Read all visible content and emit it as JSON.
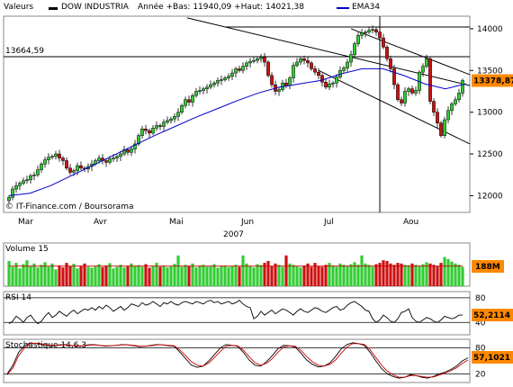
{
  "header": {
    "label": "Valeurs",
    "series_name": "DOW INDUSTRIA",
    "stats": "Année +Bas: 11940,09 +Haut: 14021,38",
    "ema_label": "EMA34"
  },
  "colors": {
    "up": "#33cc33",
    "down": "#cc1111",
    "ema": "#0000cc",
    "badge": "#ff8800",
    "panel_bg": "#ffffff",
    "stoch_line2": "#cc0000"
  },
  "chart_data": [
    {
      "type": "candlestick",
      "title": "DOW INDUSTRIA",
      "xlabel": "2007",
      "months": [
        "Mar",
        "Avr",
        "Mai",
        "Jun",
        "Jul",
        "Aou"
      ],
      "ylim": [
        11800,
        14150
      ],
      "yticks": [
        "14000",
        "13500",
        "13000",
        "12500",
        "12000"
      ],
      "reference_level": {
        "value": 13664.59,
        "label": "13664,59"
      },
      "last_value": {
        "value": 13378.87,
        "label": "13378,87"
      },
      "vertical_marker_month": "Jul",
      "credit": "© IT-Finance.com / Boursorama",
      "closes": [
        11980,
        12080,
        12120,
        12150,
        12180,
        12190,
        12240,
        12250,
        12310,
        12380,
        12430,
        12460,
        12470,
        12500,
        12450,
        12420,
        12330,
        12280,
        12300,
        12360,
        12330,
        12320,
        12350,
        12380,
        12420,
        12450,
        12420,
        12400,
        12440,
        12450,
        12470,
        12500,
        12550,
        12520,
        12560,
        12620,
        12720,
        12800,
        12780,
        12750,
        12810,
        12840,
        12830,
        12880,
        12900,
        12920,
        12950,
        13000,
        13080,
        13150,
        13120,
        13200,
        13250,
        13260,
        13280,
        13300,
        13330,
        13350,
        13380,
        13390,
        13410,
        13430,
        13470,
        13520,
        13500,
        13550,
        13590,
        13610,
        13620,
        13640,
        13660,
        13600,
        13440,
        13330,
        13250,
        13270,
        13350,
        13320,
        13410,
        13560,
        13600,
        13640,
        13620,
        13590,
        13520,
        13480,
        13440,
        13360,
        13300,
        13340,
        13350,
        13420,
        13500,
        13530,
        13600,
        13690,
        13820,
        13920,
        13950,
        13960,
        13980,
        13990,
        13960,
        13890,
        13780,
        13640,
        13520,
        13330,
        13150,
        13110,
        13250,
        13280,
        13230,
        13260,
        13480,
        13550,
        13640,
        13130,
        13000,
        12870,
        12720,
        12910,
        13020,
        13100,
        13150,
        13230,
        13379
      ],
      "ema34": [
        12000,
        12030,
        12120,
        12240,
        12360,
        12480,
        12600,
        12720,
        12830,
        12940,
        13040,
        13140,
        13230,
        13300,
        13340,
        13380,
        13460,
        13520,
        13520,
        13440,
        13340,
        13280,
        13340
      ],
      "volume": {
        "label": "Volume 15",
        "last_label": "188M",
        "values": [
          0.78,
          0.6,
          0.72,
          0.55,
          0.68,
          0.8,
          0.62,
          0.7,
          0.58,
          0.66,
          0.74,
          0.6,
          0.7,
          0.52,
          0.64,
          0.58,
          0.72,
          0.61,
          0.69,
          0.55,
          0.63,
          0.7,
          0.6,
          0.57,
          0.62,
          0.68,
          0.59,
          0.64,
          0.71,
          0.55,
          0.6,
          0.66,
          0.58,
          0.63,
          0.7,
          0.62,
          0.65,
          0.6,
          0.68,
          0.57,
          0.62,
          0.72,
          0.6,
          0.64,
          0.58,
          0.61,
          0.69,
          0.95,
          0.6,
          0.66,
          0.62,
          0.7,
          0.58,
          0.64,
          0.66,
          0.6,
          0.62,
          0.68,
          0.57,
          0.63,
          0.64,
          0.59,
          0.62,
          0.66,
          0.6,
          0.95,
          0.7,
          0.62,
          0.58,
          0.68,
          0.65,
          0.72,
          0.78,
          0.62,
          0.7,
          0.66,
          0.6,
          0.95,
          0.7,
          0.66,
          0.62,
          0.58,
          0.64,
          0.7,
          0.6,
          0.72,
          0.62,
          0.6,
          0.66,
          0.72,
          0.64,
          0.6,
          0.7,
          0.66,
          0.62,
          0.68,
          0.74,
          0.66,
          0.95,
          0.7,
          0.66,
          0.6,
          0.68,
          0.72,
          0.8,
          0.78,
          0.7,
          0.66,
          0.72,
          0.7,
          0.66,
          0.64,
          0.7,
          0.66,
          0.62,
          0.68,
          0.74,
          0.7,
          0.66,
          0.62,
          0.72,
          0.9,
          0.84,
          0.76,
          0.7,
          0.66,
          0.6
        ]
      },
      "rsi": {
        "label": "RSI 14",
        "last_label": "52,2114",
        "levels": [
          "80",
          "40"
        ],
        "ylim": [
          20,
          90
        ],
        "values": [
          38,
          42,
          50,
          46,
          40,
          48,
          52,
          44,
          38,
          42,
          50,
          56,
          48,
          52,
          58,
          54,
          50,
          56,
          60,
          54,
          58,
          62,
          60,
          64,
          60,
          66,
          62,
          68,
          64,
          58,
          62,
          66,
          60,
          64,
          70,
          68,
          66,
          72,
          68,
          70,
          74,
          70,
          66,
          72,
          70,
          74,
          70,
          68,
          72,
          74,
          72,
          70,
          74,
          72,
          70,
          74,
          76,
          72,
          74,
          70,
          72,
          74,
          70,
          72,
          76,
          70,
          66,
          64,
          46,
          50,
          58,
          52,
          56,
          60,
          54,
          58,
          62,
          60,
          56,
          52,
          58,
          62,
          58,
          56,
          60,
          64,
          62,
          58,
          56,
          60,
          64,
          66,
          60,
          62,
          68,
          72,
          74,
          70,
          66,
          60,
          58,
          46,
          40,
          44,
          52,
          48,
          42,
          40,
          46,
          56,
          58,
          62,
          48,
          42,
          40,
          44,
          48,
          46,
          42,
          40,
          44,
          50,
          48,
          46,
          48,
          52,
          52
        ]
      },
      "stochastic": {
        "label": "Stochastique 14,6,3",
        "last_label": "57,1021",
        "levels": [
          "80",
          "20"
        ],
        "ylim": [
          0,
          100
        ],
        "k": [
          20,
          40,
          70,
          85,
          92,
          90,
          88,
          86,
          85,
          87,
          88,
          86,
          84,
          85,
          87,
          88,
          86,
          84,
          85,
          86,
          88,
          87,
          85,
          83,
          84,
          86,
          88,
          87,
          85,
          84,
          70,
          55,
          40,
          35,
          38,
          50,
          65,
          80,
          88,
          86,
          84,
          70,
          52,
          40,
          38,
          48,
          62,
          78,
          86,
          85,
          82,
          68,
          52,
          42,
          36,
          38,
          45,
          60,
          78,
          88,
          92,
          90,
          86,
          70,
          50,
          32,
          20,
          14,
          10,
          12,
          18,
          16,
          12,
          10,
          14,
          20,
          24,
          30,
          38,
          50,
          57
        ],
        "d": [
          18,
          34,
          62,
          80,
          90,
          91,
          89,
          87,
          86,
          86,
          87,
          86,
          85,
          85,
          86,
          87,
          86,
          85,
          85,
          86,
          87,
          87,
          86,
          84,
          84,
          85,
          87,
          87,
          86,
          85,
          75,
          62,
          48,
          40,
          38,
          45,
          58,
          72,
          84,
          86,
          85,
          75,
          60,
          46,
          40,
          44,
          55,
          70,
          82,
          85,
          84,
          74,
          60,
          48,
          40,
          38,
          42,
          52,
          68,
          82,
          90,
          90,
          88,
          76,
          58,
          40,
          26,
          18,
          12,
          12,
          16,
          16,
          14,
          12,
          13,
          17,
          22,
          27,
          34,
          44,
          52
        ]
      }
    }
  ]
}
